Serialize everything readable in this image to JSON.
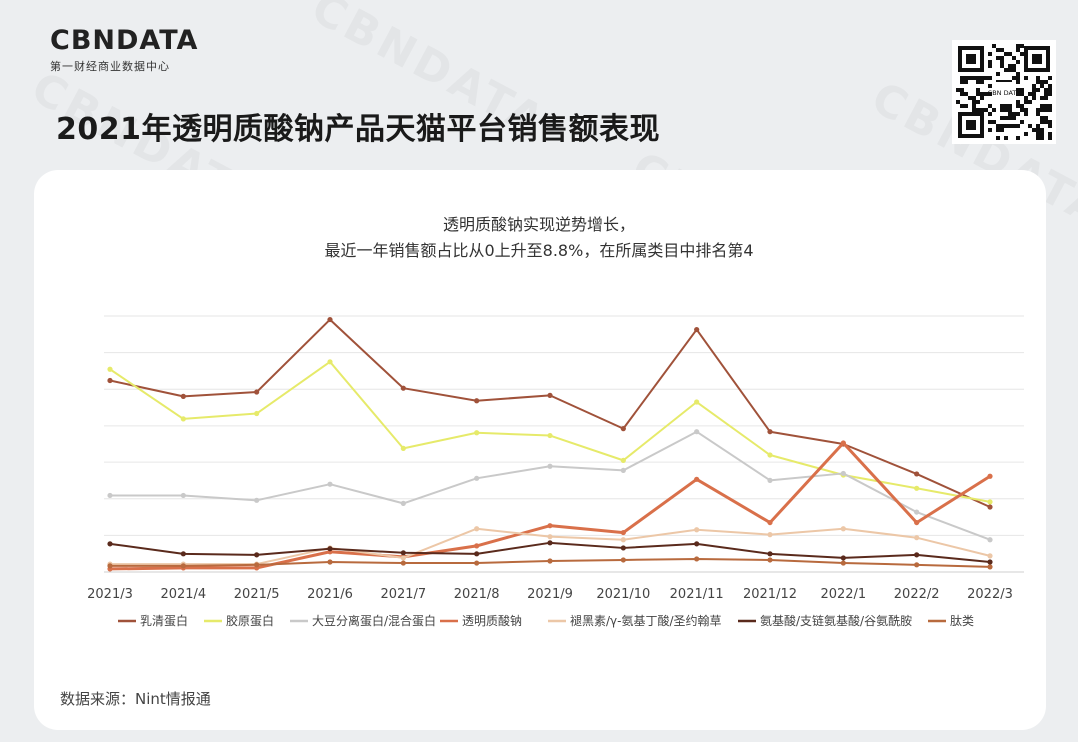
{
  "brand": {
    "name": "CBNDATA",
    "tagline": "第一财经商业数据中心",
    "qr_label": "CBN DATA"
  },
  "title": "2021年透明质酸钠产品天猫平台销售额表现",
  "watermark_text": "CBNDATA",
  "source": "数据来源：Nint情报通",
  "chart_data": {
    "type": "line",
    "subtitle_lines": [
      "透明质酸钠实现逆势增长，",
      "最近一年销售额占比从0上升至8.8%，在所属类目中排名第4"
    ],
    "categories": [
      "2021/3",
      "2021/4",
      "2021/5",
      "2021/6",
      "2021/7",
      "2021/8",
      "2021/9",
      "2021/10",
      "2021/11",
      "2021/12",
      "2022/1",
      "2022/2",
      "2022/3"
    ],
    "ylim": [
      0,
      100
    ],
    "grid": true,
    "legend_position": "bottom",
    "series": [
      {
        "name": "乳清蛋白",
        "color": "#a0523a",
        "values": [
          74.8,
          68.6,
          70.3,
          98.6,
          71.8,
          66.9,
          69.0,
          56.0,
          94.7,
          54.8,
          50.0,
          38.3,
          25.4
        ]
      },
      {
        "name": "胶原蛋白",
        "color": "#e6ea6a",
        "values": [
          79.2,
          59.8,
          61.9,
          82.1,
          48.3,
          54.4,
          53.3,
          43.6,
          66.4,
          45.7,
          37.9,
          32.7,
          27.4
        ]
      },
      {
        "name": "大豆分离蛋白/混合蛋白",
        "color": "#c9c9c9",
        "values": [
          29.9,
          29.9,
          28.0,
          34.3,
          26.8,
          36.6,
          41.3,
          39.7,
          54.8,
          35.8,
          38.5,
          23.4,
          12.6
        ]
      },
      {
        "name": "透明质酸钠",
        "color": "#d9704a",
        "values": [
          1.2,
          1.6,
          1.6,
          7.9,
          5.9,
          10.2,
          18.1,
          15.4,
          36.2,
          19.3,
          50.4,
          19.3,
          37.4
        ]
      },
      {
        "name": "褪黑素/γ-氨基丁酸/圣约翰草",
        "color": "#ecc7a7",
        "values": [
          3.1,
          3.1,
          3.1,
          9.4,
          5.5,
          16.9,
          13.8,
          12.6,
          16.5,
          14.6,
          16.9,
          13.4,
          6.3
        ]
      },
      {
        "name": "氨基酸/支链氨基酸/谷氨酰胺",
        "color": "#5a2a1c",
        "values": [
          11.0,
          7.1,
          6.7,
          9.1,
          7.5,
          7.1,
          11.4,
          9.4,
          11.0,
          7.1,
          5.5,
          6.7,
          3.9
        ]
      },
      {
        "name": "肽类",
        "color": "#b86a3e",
        "values": [
          2.4,
          2.4,
          2.8,
          3.9,
          3.5,
          3.5,
          4.3,
          4.7,
          5.1,
          4.7,
          3.5,
          2.8,
          2.0
        ]
      }
    ]
  }
}
